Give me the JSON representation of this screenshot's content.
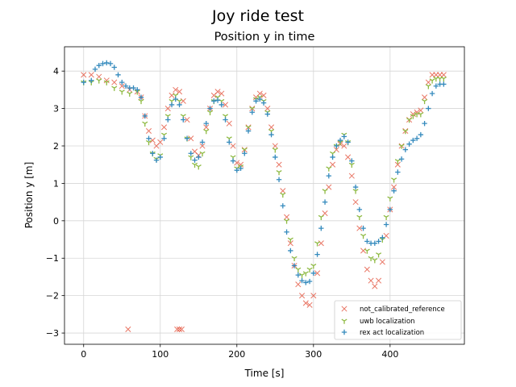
{
  "chart_data": {
    "type": "scatter",
    "suptitle": "Joy ride test",
    "title": "Position y in time",
    "xlabel": "Time [s]",
    "ylabel": "Position y [m]",
    "xlim": [
      -25,
      497
    ],
    "ylim": [
      -3.3,
      4.65
    ],
    "xticks": [
      0,
      100,
      200,
      300,
      400
    ],
    "yticks": [
      -3,
      -2,
      -1,
      0,
      1,
      2,
      3,
      4
    ],
    "grid": true,
    "legend_position": "lower right",
    "series": [
      {
        "name": "not_calibrated_reference",
        "marker": "x",
        "color": "#E24A33",
        "points": [
          [
            0,
            3.9
          ],
          [
            10,
            3.9
          ],
          [
            20,
            3.85
          ],
          [
            30,
            3.75
          ],
          [
            40,
            3.7
          ],
          [
            50,
            3.6
          ],
          [
            60,
            3.5
          ],
          [
            70,
            3.45
          ],
          [
            75,
            3.3
          ],
          [
            80,
            2.8
          ],
          [
            85,
            2.4
          ],
          [
            90,
            2.15
          ],
          [
            95,
            2.0
          ],
          [
            100,
            2.1
          ],
          [
            105,
            2.5
          ],
          [
            110,
            3.0
          ],
          [
            115,
            3.35
          ],
          [
            120,
            3.5
          ],
          [
            125,
            3.45
          ],
          [
            130,
            3.2
          ],
          [
            135,
            2.7
          ],
          [
            140,
            2.2
          ],
          [
            145,
            1.85
          ],
          [
            150,
            1.75
          ],
          [
            155,
            2.0
          ],
          [
            160,
            2.5
          ],
          [
            165,
            3.0
          ],
          [
            170,
            3.35
          ],
          [
            175,
            3.45
          ],
          [
            180,
            3.4
          ],
          [
            185,
            3.1
          ],
          [
            190,
            2.6
          ],
          [
            195,
            2.0
          ],
          [
            200,
            1.55
          ],
          [
            205,
            1.5
          ],
          [
            210,
            1.9
          ],
          [
            215,
            2.5
          ],
          [
            220,
            3.0
          ],
          [
            225,
            3.3
          ],
          [
            230,
            3.4
          ],
          [
            235,
            3.35
          ],
          [
            240,
            3.0
          ],
          [
            245,
            2.5
          ],
          [
            250,
            2.0
          ],
          [
            255,
            1.5
          ],
          [
            260,
            0.8
          ],
          [
            265,
            0.1
          ],
          [
            270,
            -0.6
          ],
          [
            275,
            -1.2
          ],
          [
            280,
            -1.7
          ],
          [
            285,
            -2.0
          ],
          [
            290,
            -2.2
          ],
          [
            295,
            -2.25
          ],
          [
            300,
            -2.0
          ],
          [
            305,
            -1.4
          ],
          [
            310,
            -0.6
          ],
          [
            315,
            0.2
          ],
          [
            320,
            0.9
          ],
          [
            325,
            1.5
          ],
          [
            330,
            1.9
          ],
          [
            335,
            2.05
          ],
          [
            340,
            2.0
          ],
          [
            345,
            1.7
          ],
          [
            350,
            1.2
          ],
          [
            355,
            0.5
          ],
          [
            360,
            -0.2
          ],
          [
            365,
            -0.8
          ],
          [
            370,
            -1.3
          ],
          [
            375,
            -1.6
          ],
          [
            380,
            -1.75
          ],
          [
            385,
            -1.6
          ],
          [
            390,
            -1.1
          ],
          [
            395,
            -0.4
          ],
          [
            400,
            0.3
          ],
          [
            405,
            0.9
          ],
          [
            410,
            1.5
          ],
          [
            415,
            2.0
          ],
          [
            420,
            2.4
          ],
          [
            425,
            2.7
          ],
          [
            430,
            2.85
          ],
          [
            435,
            2.9
          ],
          [
            440,
            2.95
          ],
          [
            445,
            3.3
          ],
          [
            450,
            3.7
          ],
          [
            455,
            3.9
          ],
          [
            460,
            3.9
          ],
          [
            465,
            3.9
          ],
          [
            470,
            3.9
          ],
          [
            58,
            -2.9
          ],
          [
            122,
            -2.9
          ],
          [
            125,
            -2.9
          ],
          [
            128,
            -2.9
          ]
        ]
      },
      {
        "name": "uwb localization",
        "marker": "tri_down",
        "color": "#8EBA42",
        "points": [
          [
            0,
            3.7
          ],
          [
            10,
            3.7
          ],
          [
            20,
            3.75
          ],
          [
            30,
            3.7
          ],
          [
            40,
            3.55
          ],
          [
            50,
            3.45
          ],
          [
            60,
            3.4
          ],
          [
            70,
            3.45
          ],
          [
            75,
            3.2
          ],
          [
            80,
            2.6
          ],
          [
            85,
            2.1
          ],
          [
            90,
            1.8
          ],
          [
            95,
            1.65
          ],
          [
            100,
            1.75
          ],
          [
            105,
            2.3
          ],
          [
            110,
            2.8
          ],
          [
            115,
            3.2
          ],
          [
            120,
            3.35
          ],
          [
            125,
            3.2
          ],
          [
            130,
            2.8
          ],
          [
            135,
            2.2
          ],
          [
            140,
            1.7
          ],
          [
            145,
            1.5
          ],
          [
            150,
            1.45
          ],
          [
            155,
            1.8
          ],
          [
            160,
            2.4
          ],
          [
            165,
            2.9
          ],
          [
            170,
            3.2
          ],
          [
            175,
            3.3
          ],
          [
            180,
            3.2
          ],
          [
            185,
            2.8
          ],
          [
            190,
            2.2
          ],
          [
            195,
            1.7
          ],
          [
            200,
            1.4
          ],
          [
            205,
            1.45
          ],
          [
            210,
            1.9
          ],
          [
            215,
            2.5
          ],
          [
            220,
            3.0
          ],
          [
            225,
            3.25
          ],
          [
            230,
            3.3
          ],
          [
            235,
            3.2
          ],
          [
            240,
            2.9
          ],
          [
            245,
            2.4
          ],
          [
            250,
            1.9
          ],
          [
            255,
            1.3
          ],
          [
            260,
            0.7
          ],
          [
            265,
            0.0
          ],
          [
            270,
            -0.5
          ],
          [
            275,
            -1.0
          ],
          [
            280,
            -1.3
          ],
          [
            285,
            -1.45
          ],
          [
            290,
            -1.4
          ],
          [
            295,
            -1.3
          ],
          [
            300,
            -1.2
          ],
          [
            305,
            -0.6
          ],
          [
            310,
            0.1
          ],
          [
            315,
            0.8
          ],
          [
            320,
            1.4
          ],
          [
            325,
            1.8
          ],
          [
            330,
            2.0
          ],
          [
            335,
            2.1
          ],
          [
            340,
            2.3
          ],
          [
            345,
            2.1
          ],
          [
            350,
            1.5
          ],
          [
            355,
            0.8
          ],
          [
            360,
            0.1
          ],
          [
            365,
            -0.4
          ],
          [
            370,
            -0.8
          ],
          [
            375,
            -1.0
          ],
          [
            380,
            -1.05
          ],
          [
            385,
            -0.9
          ],
          [
            390,
            -0.5
          ],
          [
            395,
            0.1
          ],
          [
            400,
            0.6
          ],
          [
            405,
            1.1
          ],
          [
            410,
            1.6
          ],
          [
            415,
            2.0
          ],
          [
            420,
            2.4
          ],
          [
            425,
            2.7
          ],
          [
            430,
            2.8
          ],
          [
            435,
            2.85
          ],
          [
            440,
            2.85
          ],
          [
            445,
            3.2
          ],
          [
            450,
            3.6
          ],
          [
            455,
            3.75
          ],
          [
            460,
            3.8
          ],
          [
            465,
            3.8
          ],
          [
            470,
            3.8
          ]
        ]
      },
      {
        "name": "rex act localization",
        "marker": "plus",
        "color": "#348ABD",
        "points": [
          [
            0,
            3.7
          ],
          [
            10,
            3.75
          ],
          [
            15,
            4.05
          ],
          [
            20,
            4.15
          ],
          [
            25,
            4.2
          ],
          [
            30,
            4.22
          ],
          [
            35,
            4.2
          ],
          [
            40,
            4.1
          ],
          [
            45,
            3.9
          ],
          [
            50,
            3.7
          ],
          [
            55,
            3.6
          ],
          [
            60,
            3.55
          ],
          [
            65,
            3.55
          ],
          [
            70,
            3.5
          ],
          [
            75,
            3.3
          ],
          [
            80,
            2.8
          ],
          [
            85,
            2.2
          ],
          [
            90,
            1.8
          ],
          [
            95,
            1.62
          ],
          [
            100,
            1.7
          ],
          [
            105,
            2.2
          ],
          [
            110,
            2.7
          ],
          [
            115,
            3.1
          ],
          [
            120,
            3.25
          ],
          [
            125,
            3.1
          ],
          [
            130,
            2.7
          ],
          [
            135,
            2.2
          ],
          [
            140,
            1.8
          ],
          [
            145,
            1.62
          ],
          [
            150,
            1.7
          ],
          [
            155,
            2.1
          ],
          [
            160,
            2.6
          ],
          [
            165,
            3.0
          ],
          [
            170,
            3.2
          ],
          [
            175,
            3.22
          ],
          [
            180,
            3.1
          ],
          [
            185,
            2.7
          ],
          [
            190,
            2.1
          ],
          [
            195,
            1.6
          ],
          [
            200,
            1.35
          ],
          [
            205,
            1.4
          ],
          [
            210,
            1.8
          ],
          [
            215,
            2.4
          ],
          [
            220,
            2.9
          ],
          [
            225,
            3.2
          ],
          [
            230,
            3.25
          ],
          [
            235,
            3.15
          ],
          [
            240,
            2.85
          ],
          [
            245,
            2.3
          ],
          [
            250,
            1.7
          ],
          [
            255,
            1.1
          ],
          [
            260,
            0.4
          ],
          [
            265,
            -0.3
          ],
          [
            270,
            -0.8
          ],
          [
            275,
            -1.2
          ],
          [
            280,
            -1.45
          ],
          [
            285,
            -1.6
          ],
          [
            290,
            -1.65
          ],
          [
            295,
            -1.62
          ],
          [
            300,
            -1.4
          ],
          [
            305,
            -0.9
          ],
          [
            310,
            -0.2
          ],
          [
            315,
            0.5
          ],
          [
            320,
            1.2
          ],
          [
            325,
            1.7
          ],
          [
            330,
            2.0
          ],
          [
            335,
            2.15
          ],
          [
            340,
            2.25
          ],
          [
            345,
            2.1
          ],
          [
            350,
            1.6
          ],
          [
            355,
            0.9
          ],
          [
            360,
            0.3
          ],
          [
            365,
            -0.2
          ],
          [
            370,
            -0.55
          ],
          [
            375,
            -0.6
          ],
          [
            380,
            -0.6
          ],
          [
            385,
            -0.55
          ],
          [
            390,
            -0.45
          ],
          [
            395,
            -0.1
          ],
          [
            400,
            0.3
          ],
          [
            405,
            0.8
          ],
          [
            410,
            1.3
          ],
          [
            415,
            1.65
          ],
          [
            420,
            1.9
          ],
          [
            425,
            2.05
          ],
          [
            430,
            2.15
          ],
          [
            435,
            2.2
          ],
          [
            440,
            2.3
          ],
          [
            445,
            2.6
          ],
          [
            450,
            3.0
          ],
          [
            455,
            3.4
          ],
          [
            460,
            3.6
          ],
          [
            465,
            3.65
          ],
          [
            470,
            3.65
          ]
        ]
      }
    ]
  }
}
